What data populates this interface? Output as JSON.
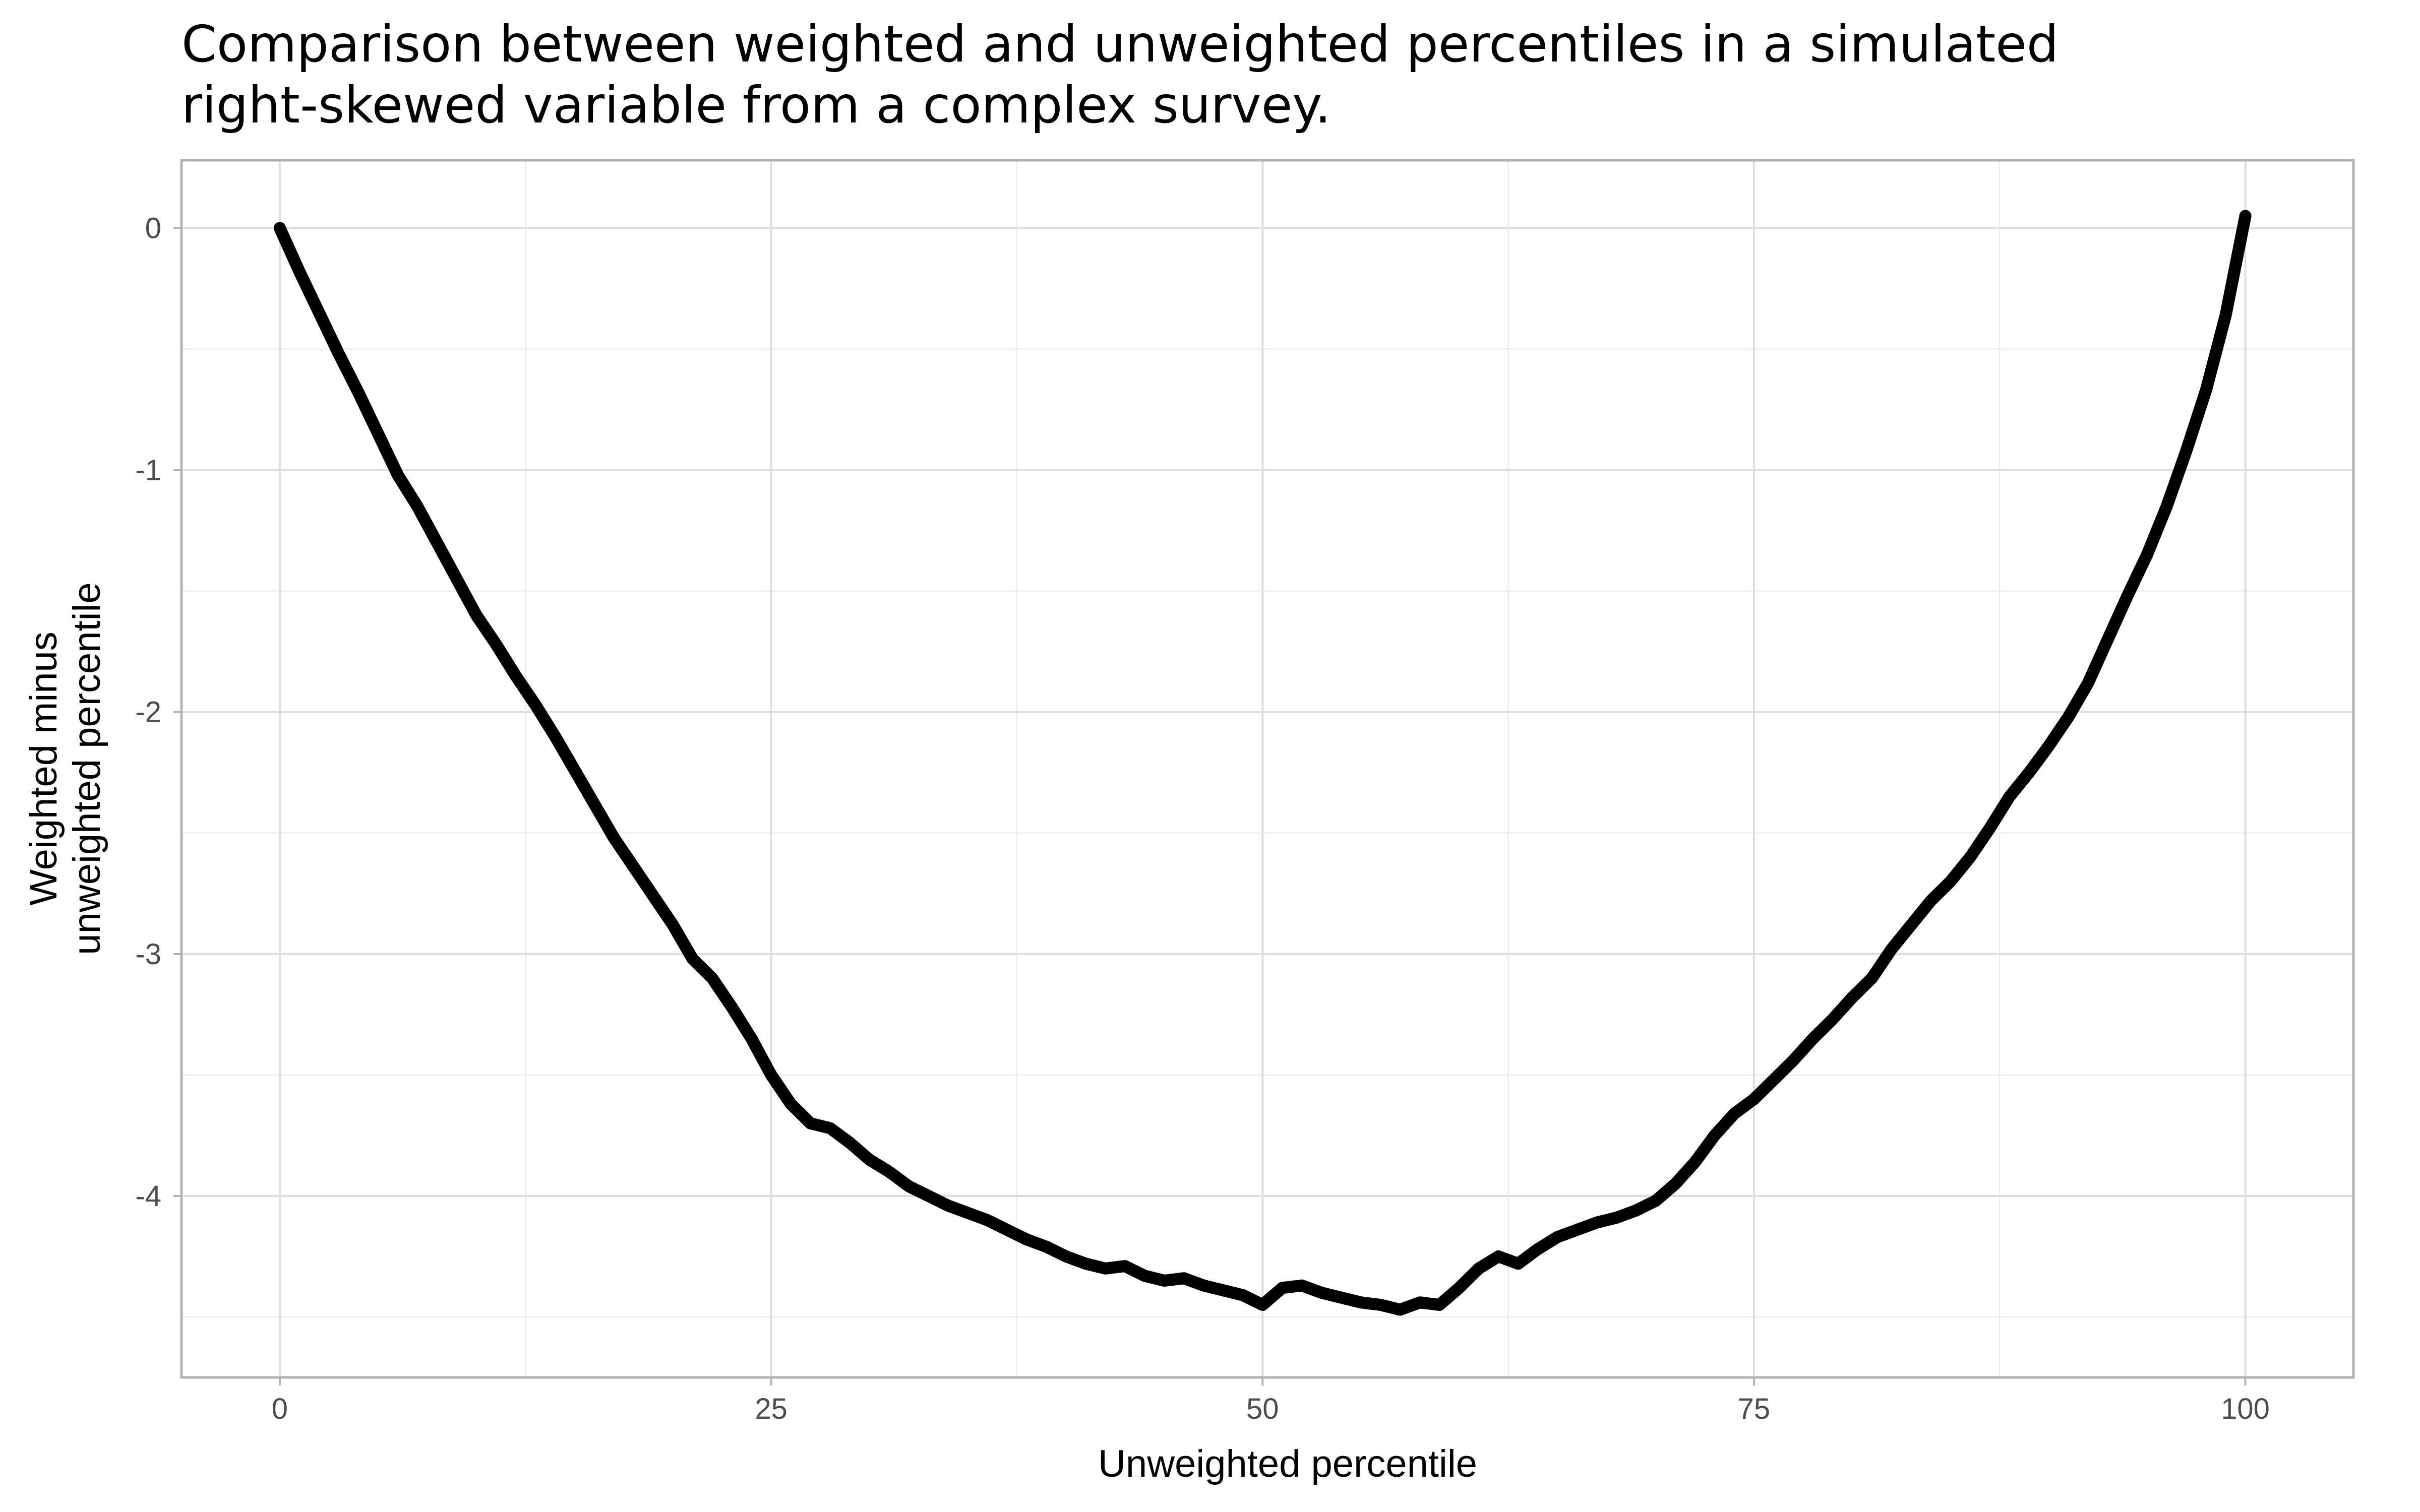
{
  "chart_data": {
    "type": "line",
    "title": "Comparison between weighted and unweighted percentiles in a simulated right-skewed variable from a complex survey.",
    "title_lines": [
      "Comparison between weighted and unweighted percentiles in a simulated",
      "right-skewed variable from a complex survey."
    ],
    "xlabel": "Unweighted percentile",
    "ylabel": "Weighted minus unweighted percentile",
    "ylabel_lines": [
      "Weighted minus",
      "unweighted percentile"
    ],
    "xlim": [
      -5,
      105.5
    ],
    "ylim": [
      -4.75,
      0.28
    ],
    "x_ticks": [
      0,
      25,
      50,
      75,
      100
    ],
    "x_tick_labels": [
      "0",
      "25",
      "50",
      "75",
      "100"
    ],
    "y_ticks": [
      0,
      -1,
      -2,
      -3,
      -4
    ],
    "y_tick_labels": [
      "0",
      "-1",
      "-2",
      "-3",
      "-4"
    ],
    "x_minor_ticks": [
      12.5,
      37.5,
      62.5,
      87.5
    ],
    "y_minor_ticks": [
      -0.5,
      -1.5,
      -2.5,
      -3.5,
      -4.5
    ],
    "grid": true,
    "legend": "none",
    "series": [
      {
        "color": "#000000",
        "x": [
          0,
          1,
          2,
          3,
          4,
          5,
          6,
          7,
          8,
          9,
          10,
          11,
          12,
          13,
          14,
          15,
          16,
          17,
          18,
          19,
          20,
          21,
          22,
          23,
          24,
          25,
          26,
          27,
          28,
          29,
          30,
          31,
          32,
          33,
          34,
          35,
          36,
          37,
          38,
          39,
          40,
          41,
          42,
          43,
          44,
          45,
          46,
          47,
          48,
          49,
          50,
          51,
          52,
          53,
          54,
          55,
          56,
          57,
          58,
          59,
          60,
          61,
          62,
          63,
          64,
          65,
          66,
          67,
          68,
          69,
          70,
          71,
          72,
          73,
          74,
          75,
          76,
          77,
          78,
          79,
          80,
          81,
          82,
          83,
          84,
          85,
          86,
          87,
          88,
          89,
          90,
          91,
          92,
          93,
          94,
          95,
          96,
          97,
          98,
          99,
          100
        ],
        "y": [
          0,
          -0.18,
          -0.35,
          -0.52,
          -0.68,
          -0.85,
          -1.02,
          -1.15,
          -1.3,
          -1.45,
          -1.6,
          -1.72,
          -1.85,
          -1.97,
          -2.1,
          -2.24,
          -2.38,
          -2.52,
          -2.64,
          -2.76,
          -2.88,
          -3.02,
          -3.1,
          -3.22,
          -3.35,
          -3.5,
          -3.62,
          -3.7,
          -3.72,
          -3.78,
          -3.85,
          -3.9,
          -3.96,
          -4.0,
          -4.04,
          -4.07,
          -4.1,
          -4.14,
          -4.18,
          -4.21,
          -4.25,
          -4.28,
          -4.3,
          -4.29,
          -4.33,
          -4.35,
          -4.34,
          -4.37,
          -4.39,
          -4.41,
          -4.45,
          -4.38,
          -4.37,
          -4.4,
          -4.42,
          -4.44,
          -4.45,
          -4.47,
          -4.44,
          -4.45,
          -4.38,
          -4.3,
          -4.25,
          -4.28,
          -4.22,
          -4.17,
          -4.14,
          -4.11,
          -4.09,
          -4.06,
          -4.02,
          -3.95,
          -3.86,
          -3.75,
          -3.66,
          -3.6,
          -3.52,
          -3.44,
          -3.35,
          -3.27,
          -3.18,
          -3.1,
          -2.98,
          -2.88,
          -2.78,
          -2.7,
          -2.6,
          -2.48,
          -2.35,
          -2.25,
          -2.14,
          -2.02,
          -1.88,
          -1.7,
          -1.52,
          -1.35,
          -1.15,
          -0.92,
          -0.67,
          -0.36,
          0.05
        ]
      }
    ]
  }
}
